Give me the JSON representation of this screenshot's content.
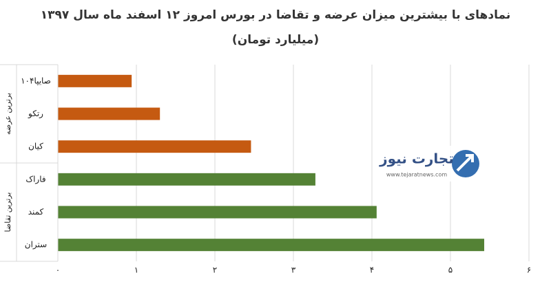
{
  "chart_data": {
    "type": "bar",
    "orientation": "horizontal",
    "title": "نمادهای با بیشترین میزان عرضه و تقاضا در بورس امروز ۱۲ اسفند ماه سال ۱۳۹۷",
    "subtitle": "(میلیارد تومان)",
    "groups": [
      {
        "name": "برترین عرضه",
        "color": "#c55a11",
        "categories": [
          "صایپا۱۰۴",
          "رتکو",
          "کیان"
        ],
        "values": [
          0.94,
          1.3,
          2.46
        ]
      },
      {
        "name": "برترین تقاضا",
        "color": "#548235",
        "categories": [
          "فاراک",
          "کمند",
          "ستران"
        ],
        "values": [
          3.28,
          4.06,
          5.43
        ]
      }
    ],
    "xlim": [
      0,
      6
    ],
    "xticks": [
      {
        "value": 0,
        "label": "۰"
      },
      {
        "value": 1,
        "label": "۱"
      },
      {
        "value": 2,
        "label": "۲"
      },
      {
        "value": 3,
        "label": "۳"
      },
      {
        "value": 4,
        "label": "۴"
      },
      {
        "value": 5,
        "label": "۵"
      },
      {
        "value": 6,
        "label": "۶"
      }
    ],
    "grid": true
  },
  "watermark": {
    "name": "تجارت نیوز",
    "url": "www.tejaratnews.com"
  }
}
